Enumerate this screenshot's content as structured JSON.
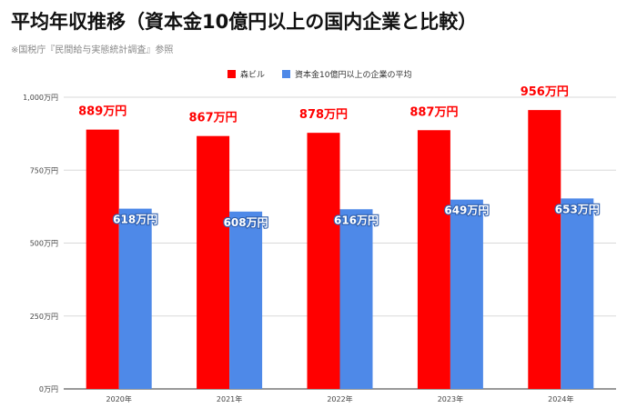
{
  "header": {
    "title": "平均年収推移（資本金10億円以上の国内企業と比較）",
    "subtitle": "※国税庁『民間給与実態統計調査』参照"
  },
  "colors": {
    "series1": "#ff0000",
    "series2": "#4e89e8",
    "label1": "#ff0000",
    "label2": "#ffffff",
    "grid": "#d9d9d9"
  },
  "chart_data": {
    "type": "bar",
    "categories": [
      "2020年",
      "2021年",
      "2022年",
      "2023年",
      "2024年"
    ],
    "series": [
      {
        "name": "森ビル",
        "values": [
          889,
          867,
          878,
          887,
          956
        ],
        "labels": [
          "889万円",
          "867万円",
          "878万円",
          "887万円",
          "956万円"
        ]
      },
      {
        "name": "資本金10億円以上の企業の平均",
        "values": [
          618,
          608,
          616,
          649,
          653
        ],
        "labels": [
          "618万円",
          "608万円",
          "616万円",
          "649万円",
          "653万円"
        ]
      }
    ],
    "yticks": [
      0,
      250,
      500,
      750,
      1000
    ],
    "ytick_labels": [
      "0万円",
      "250万円",
      "500万円",
      "750万円",
      "1,000万円"
    ],
    "ylim": [
      0,
      1000
    ],
    "grid": true,
    "legend_position": "top"
  }
}
